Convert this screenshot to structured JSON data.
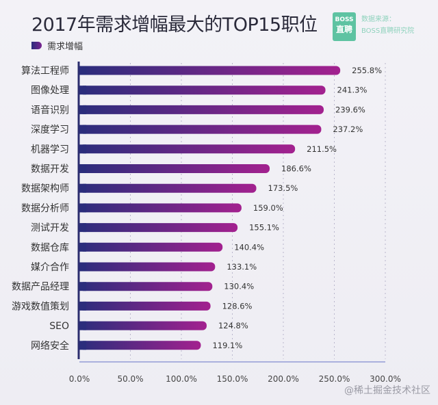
{
  "header": {
    "title": "2017年需求增幅最大的TOP15职位",
    "logo_top": "BOSS",
    "logo_bottom": "直聘",
    "source_label": "数据来源：",
    "source": "BOSS直聘研究院"
  },
  "watermark": "@稀土掘金技术社区",
  "colors": {
    "bar_start": "#2b2d7c",
    "bar_end": "#a3218f",
    "text": "#333333"
  },
  "chart_data": {
    "type": "bar",
    "orientation": "horizontal",
    "title": "2017年需求增幅最大的TOP15职位",
    "legend": {
      "entries": [
        "需求增幅"
      ],
      "placement": "top-left"
    },
    "categories": [
      "算法工程师",
      "图像处理",
      "语音识别",
      "深度学习",
      "机器学习",
      "数据开发",
      "数据架构师",
      "数据分析师",
      "测试开发",
      "数据仓库",
      "媒介合作",
      "数据产品经理",
      "游戏数值策划",
      "SEO",
      "网络安全"
    ],
    "series": [
      {
        "name": "需求增幅",
        "values": [
          255.8,
          241.3,
          239.6,
          237.2,
          211.5,
          186.6,
          173.5,
          159.0,
          155.1,
          140.4,
          133.1,
          130.4,
          128.6,
          124.8,
          119.1
        ],
        "labels": [
          "255.8%",
          "241.3%",
          "239.6%",
          "237.2%",
          "211.5%",
          "186.6%",
          "173.5%",
          "159.0%",
          "155.1%",
          "140.4%",
          "133.1%",
          "130.4%",
          "128.6%",
          "124.8%",
          "119.1%"
        ]
      }
    ],
    "xlim": [
      0,
      300
    ],
    "xticks": [
      "0.0%",
      "50.0%",
      "100.0%",
      "150.0%",
      "200.0%",
      "250.0%",
      "300.0%"
    ],
    "grid": true
  }
}
